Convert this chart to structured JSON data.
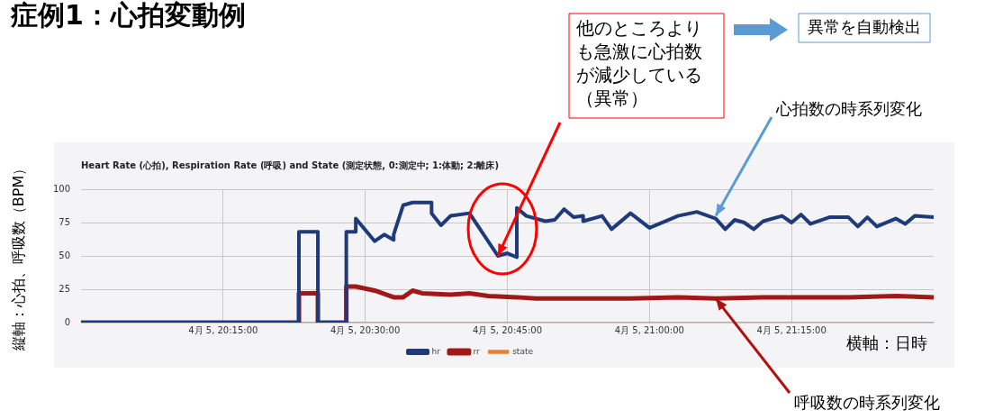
{
  "chart_data": {
    "type": "line",
    "title": "Heart Rate (心拍), Respiration Rate (呼吸) and State (測定状態, 0:測定中; 1:体動; 2:離床)",
    "xlabel": "横軸：日時",
    "ylabel": "縦軸：心拍、呼吸数（BPM）",
    "xlim": [
      "--04-05T20:00",
      "--04-05T21:30"
    ],
    "xticks": [
      {
        "value": "--04-05T20:15",
        "label": "4月 5, 20:15:00"
      },
      {
        "value": "--04-05T20:30",
        "label": "4月 5, 20:30:00"
      },
      {
        "value": "--04-05T20:45",
        "label": "4月 5, 20:45:00"
      },
      {
        "value": "--04-05T21:00",
        "label": "4月 5, 21:00:00"
      },
      {
        "value": "--04-05T21:15",
        "label": "4月 5, 21:15:00"
      }
    ],
    "ylim": [
      0,
      100
    ],
    "yticks": [
      0,
      25,
      50,
      75,
      100
    ],
    "grid": true,
    "legend": "bottom",
    "line_style": "solid",
    "annotations": [
      "症例1：心拍変動例",
      {
        "text": "他のところよりも急激に心拍数が減少している（異常）",
        "x": "--04-05T20:44",
        "y": 50
      },
      "異常を自動検出",
      {
        "text": "心拍数の時系列変化",
        "x": "--04-05T21:07",
        "y": 80
      },
      {
        "text": "呼吸数の時系列変化",
        "x": "--04-05T21:07",
        "y": 18
      }
    ],
    "series": [
      {
        "name": "hr",
        "color": "#1f3a7a",
        "x": [
          "--04-05T20:00",
          "--04-05T20:23",
          "--04-05T20:23",
          "--04-05T20:25",
          "--04-05T20:25",
          "--04-05T20:28",
          "--04-05T20:28",
          "--04-05T20:29",
          "--04-05T20:29",
          "--04-05T20:31",
          "--04-05T20:32",
          "--04-05T20:33",
          "--04-05T20:33",
          "--04-05T20:34",
          "--04-05T20:35",
          "--04-05T20:37",
          "--04-05T20:37",
          "--04-05T20:38",
          "--04-05T20:39",
          "--04-05T20:41",
          "--04-05T20:44",
          "--04-05T20:45",
          "--04-05T20:46",
          "--04-05T20:46",
          "--04-05T20:46",
          "--04-05T20:47",
          "--04-05T20:49",
          "--04-05T20:50",
          "--04-05T20:51",
          "--04-05T20:52",
          "--04-05T20:53",
          "--04-05T20:53",
          "--04-05T20:55",
          "--04-05T20:56",
          "--04-05T20:58",
          "--04-05T21:00",
          "--04-05T21:02",
          "--04-05T21:03",
          "--04-05T21:05",
          "--04-05T21:07",
          "--04-05T21:08",
          "--04-05T21:09",
          "--04-05T21:10",
          "--04-05T21:11",
          "--04-05T21:12",
          "--04-05T21:14",
          "--04-05T21:15",
          "--04-05T21:16",
          "--04-05T21:17",
          "--04-05T21:19",
          "--04-05T21:21",
          "--04-05T21:22",
          "--04-05T21:23",
          "--04-05T21:24",
          "--04-05T21:26",
          "--04-05T21:27",
          "--04-05T21:28",
          "--04-05T21:30"
        ],
        "values": [
          0,
          0,
          68,
          68,
          0,
          0,
          68,
          68,
          78,
          61,
          66,
          62,
          66,
          88,
          90,
          90,
          82,
          73,
          80,
          82,
          50,
          52,
          49,
          50,
          86,
          80,
          76,
          77,
          85,
          79,
          80,
          76,
          80,
          70,
          82,
          71,
          77,
          80,
          83,
          78,
          70,
          77,
          75,
          70,
          76,
          80,
          75,
          81,
          74,
          79,
          79,
          72,
          79,
          72,
          78,
          74,
          80,
          79
        ]
      },
      {
        "name": "rr",
        "color": "#a01818",
        "x": [
          "--04-05T20:00",
          "--04-05T20:23",
          "--04-05T20:23",
          "--04-05T20:25",
          "--04-05T20:25",
          "--04-05T20:28",
          "--04-05T20:28",
          "--04-05T20:29",
          "--04-05T20:31",
          "--04-05T20:33",
          "--04-05T20:34",
          "--04-05T20:35",
          "--04-05T20:36",
          "--04-05T20:39",
          "--04-05T20:41",
          "--04-05T20:43",
          "--04-05T20:46",
          "--04-05T20:48",
          "--04-05T20:53",
          "--04-05T20:58",
          "--04-05T21:03",
          "--04-05T21:07",
          "--04-05T21:12",
          "--04-05T21:17",
          "--04-05T21:21",
          "--04-05T21:26",
          "--04-05T21:30"
        ],
        "values": [
          0,
          0,
          22,
          22,
          0,
          0,
          27,
          27,
          24,
          19,
          19,
          24,
          22,
          21,
          22,
          20,
          19,
          18,
          18,
          18,
          19,
          18,
          19,
          19,
          19,
          20,
          19
        ]
      },
      {
        "name": "state",
        "color": "#e8823a",
        "x": [
          "--04-05T20:00",
          "--04-05T21:30"
        ],
        "values": [
          0,
          0
        ]
      }
    ]
  }
}
